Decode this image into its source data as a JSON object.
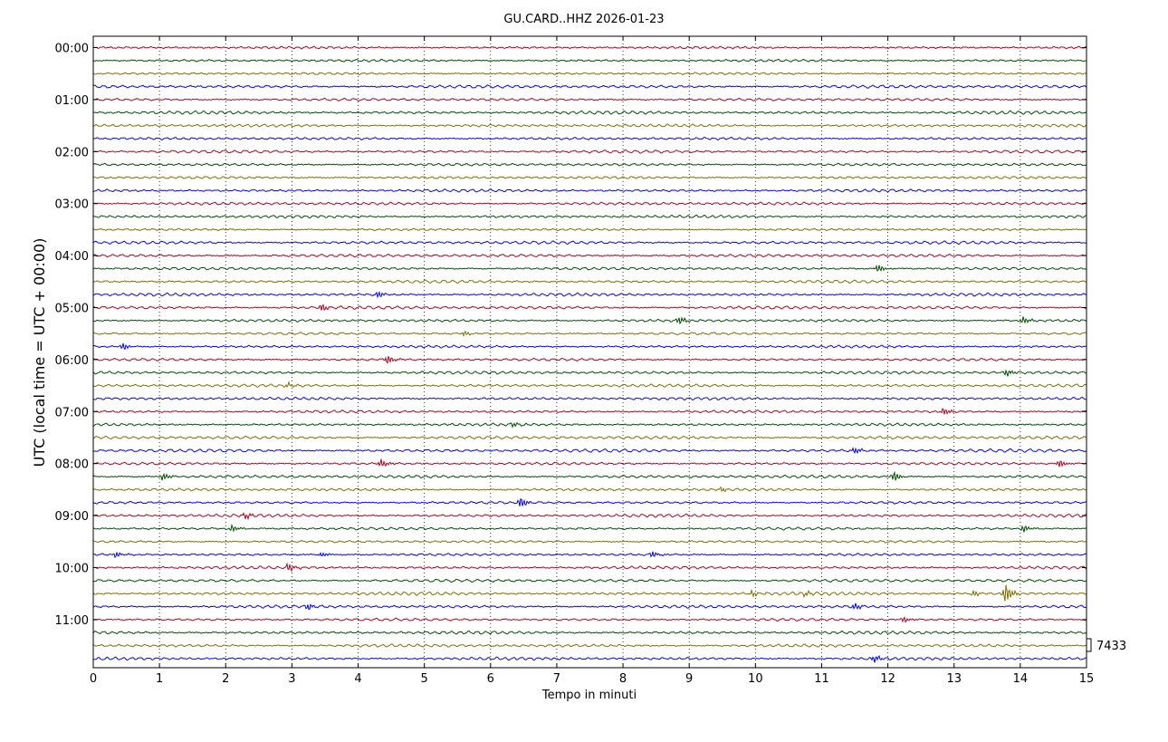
{
  "chart_data": {
    "type": "line",
    "title": "GU.CARD..HHZ 2026-01-23",
    "xlabel": "Tempo in minuti",
    "ylabel": "UTC (local time = UTC + 00:00)",
    "xlim": [
      0,
      15
    ],
    "x_ticks": [
      "0",
      "1",
      "2",
      "3",
      "4",
      "5",
      "6",
      "7",
      "8",
      "9",
      "10",
      "11",
      "12",
      "13",
      "14",
      "15"
    ],
    "y_tick_labels": [
      "00:00",
      "01:00",
      "02:00",
      "03:00",
      "04:00",
      "05:00",
      "06:00",
      "07:00",
      "08:00",
      "09:00",
      "10:00",
      "11:00"
    ],
    "grid": "vertical dotted at each minute",
    "scale_label": "7433",
    "trace_interval_minutes": 15,
    "trace_count": 48,
    "trace_colors": [
      "#b2001e",
      "#004d00",
      "#7f6e00",
      "#0000ff"
    ],
    "events": [
      {
        "trace": 17,
        "minute": 11.85,
        "amp": 2.0
      },
      {
        "trace": 19,
        "minute": 4.3,
        "amp": 1.6
      },
      {
        "trace": 20,
        "minute": 3.45,
        "amp": 1.8
      },
      {
        "trace": 21,
        "minute": 8.85,
        "amp": 2.0
      },
      {
        "trace": 21,
        "minute": 14.05,
        "amp": 1.8
      },
      {
        "trace": 22,
        "minute": 5.6,
        "amp": 1.2
      },
      {
        "trace": 23,
        "minute": 0.45,
        "amp": 1.6
      },
      {
        "trace": 24,
        "minute": 4.45,
        "amp": 2.2
      },
      {
        "trace": 25,
        "minute": 13.8,
        "amp": 1.8
      },
      {
        "trace": 26,
        "minute": 2.95,
        "amp": 1.2
      },
      {
        "trace": 28,
        "minute": 12.85,
        "amp": 1.8
      },
      {
        "trace": 29,
        "minute": 6.35,
        "amp": 1.2
      },
      {
        "trace": 31,
        "minute": 11.5,
        "amp": 1.6
      },
      {
        "trace": 32,
        "minute": 4.35,
        "amp": 2.2
      },
      {
        "trace": 32,
        "minute": 14.6,
        "amp": 2.0
      },
      {
        "trace": 33,
        "minute": 1.05,
        "amp": 1.8
      },
      {
        "trace": 33,
        "minute": 12.1,
        "amp": 2.4
      },
      {
        "trace": 34,
        "minute": 9.5,
        "amp": 1.2
      },
      {
        "trace": 35,
        "minute": 6.45,
        "amp": 2.6
      },
      {
        "trace": 36,
        "minute": 2.3,
        "amp": 1.6
      },
      {
        "trace": 37,
        "minute": 2.1,
        "amp": 1.6
      },
      {
        "trace": 37,
        "minute": 14.05,
        "amp": 1.8
      },
      {
        "trace": 39,
        "minute": 0.35,
        "amp": 1.4
      },
      {
        "trace": 39,
        "minute": 3.45,
        "amp": 1.2
      },
      {
        "trace": 39,
        "minute": 8.45,
        "amp": 1.6
      },
      {
        "trace": 40,
        "minute": 2.95,
        "amp": 2.0
      },
      {
        "trace": 42,
        "minute": 9.95,
        "amp": 1.4
      },
      {
        "trace": 42,
        "minute": 10.75,
        "amp": 1.2
      },
      {
        "trace": 42,
        "minute": 13.3,
        "amp": 1.4
      },
      {
        "trace": 42,
        "minute": 13.78,
        "amp": 5.0
      },
      {
        "trace": 43,
        "minute": 3.25,
        "amp": 1.6
      },
      {
        "trace": 43,
        "minute": 11.5,
        "amp": 1.6
      },
      {
        "trace": 44,
        "minute": 12.25,
        "amp": 1.4
      },
      {
        "trace": 47,
        "minute": 11.8,
        "amp": 1.8
      }
    ]
  }
}
